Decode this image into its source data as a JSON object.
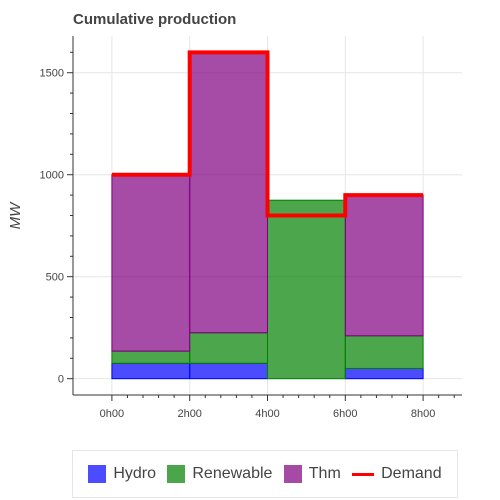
{
  "chart_data": {
    "type": "bar",
    "title": "Cumulative production",
    "xlabel": "",
    "ylabel": "MW",
    "x_edges": [
      0,
      2,
      4,
      6,
      8
    ],
    "x_tick_labels": [
      "0h00",
      "2h00",
      "4h00",
      "6h00",
      "8h00"
    ],
    "xlim": [
      -1,
      9
    ],
    "ylim": [
      -80,
      1680
    ],
    "y_ticks": [
      0,
      500,
      1000,
      1500
    ],
    "grid": true,
    "stacked": true,
    "legend_position": "bottom",
    "series": [
      {
        "name": "Hydro",
        "values": [
          75,
          75,
          0,
          50
        ],
        "fill": "#0000ff",
        "stroke": "#0000ff"
      },
      {
        "name": "Renewable",
        "values": [
          60,
          150,
          875,
          160
        ],
        "fill": "#008000",
        "stroke": "#008000"
      },
      {
        "name": "Thm",
        "values": [
          865,
          1375,
          0,
          690
        ],
        "fill": "#800080",
        "stroke": "#800080"
      }
    ],
    "line_series": {
      "name": "Demand",
      "values": [
        1000,
        1600,
        800,
        900
      ],
      "color": "#ff0000"
    }
  }
}
